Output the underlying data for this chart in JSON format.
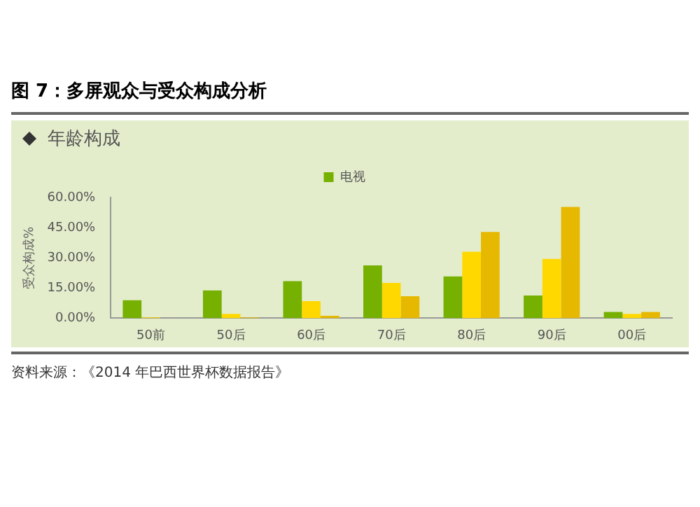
{
  "chart_data": {
    "type": "bar",
    "title": "图 7：多屏观众与受众构成分析",
    "subtitle": "年龄构成",
    "ylabel": "受众构成%",
    "categories": [
      "50前",
      "50后",
      "60后",
      "70后",
      "80后",
      "90后",
      "00后"
    ],
    "series": [
      {
        "name": "电视",
        "color": "#76b000",
        "values": [
          8.9,
          13.8,
          18.4,
          26.2,
          20.8,
          11.3,
          3.1
        ]
      },
      {
        "color": "#ffd800",
        "values": [
          0.4,
          2.1,
          8.5,
          17.5,
          33,
          29.5,
          2.1
        ]
      },
      {
        "color": "#e6b800",
        "values": [
          null,
          0.4,
          1.2,
          10.9,
          42.9,
          55.3,
          3.1
        ]
      }
    ],
    "ylim": [
      0,
      60
    ],
    "yticks": [
      {
        "value": 0,
        "label": "0.00%"
      },
      {
        "value": 15,
        "label": "15.00%"
      },
      {
        "value": 30,
        "label": "30.00%"
      },
      {
        "value": 45,
        "label": "45.00%"
      },
      {
        "value": 60,
        "label": "60.00%"
      }
    ],
    "legend": "top",
    "grid": false,
    "annotations": [
      "资料来源：《2014 年巴西世界杯数据报告》"
    ]
  }
}
